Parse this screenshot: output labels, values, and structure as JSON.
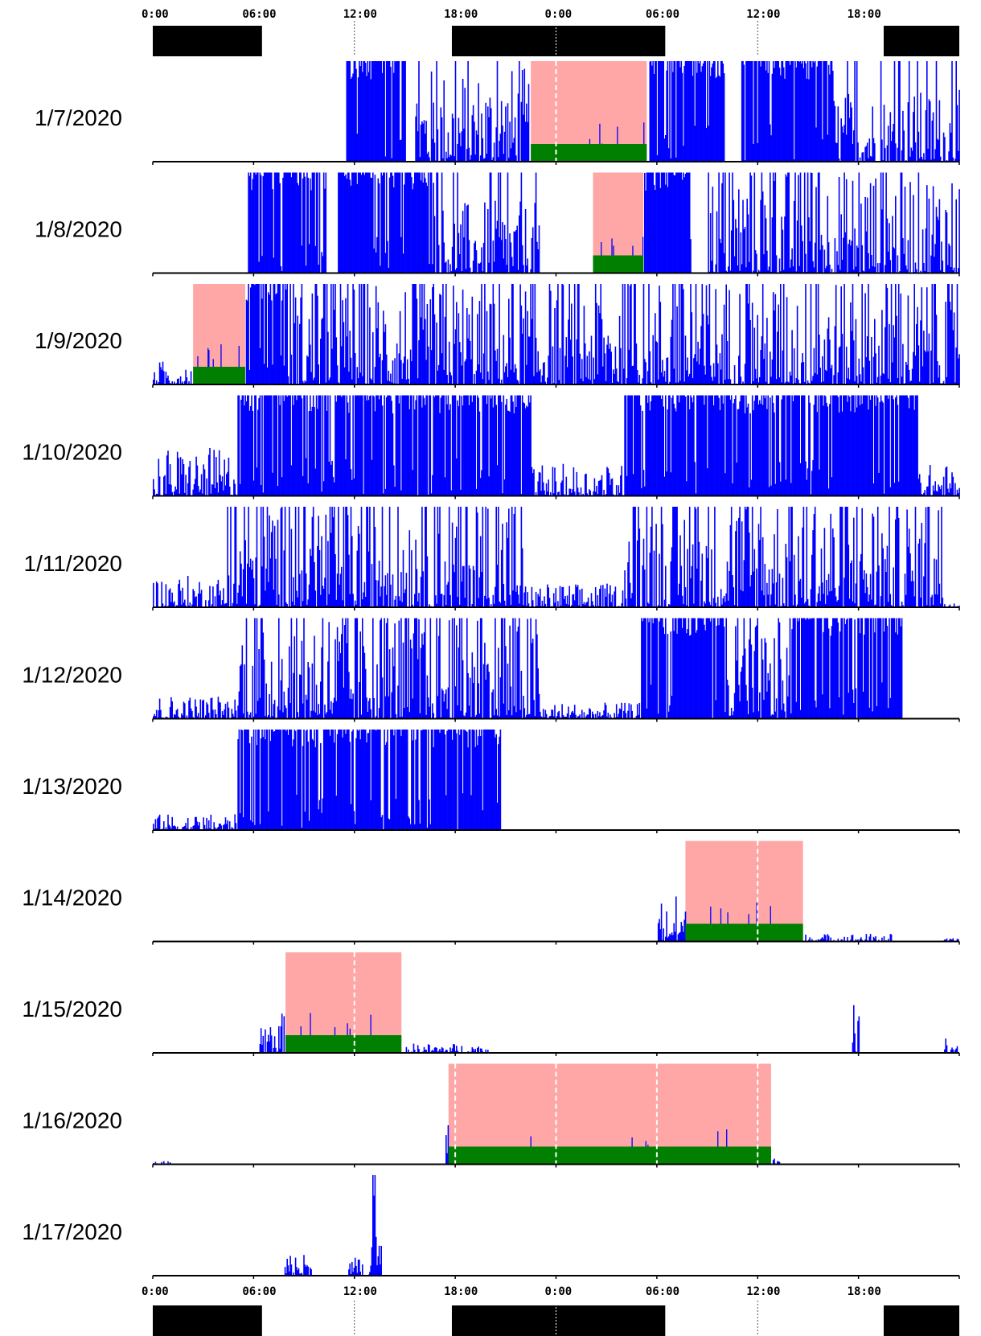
{
  "chart_data": {
    "type": "actogram",
    "hours_per_row": 48,
    "x_ticks": [
      "0:00",
      "06:00",
      "12:00",
      "18:00",
      "0:00",
      "06:00",
      "12:00",
      "18:00"
    ],
    "light_dark_bar": [
      {
        "phase": "dark",
        "start_h": 0,
        "end_h": 6.5
      },
      {
        "phase": "light",
        "start_h": 6.5,
        "end_h": 17.8
      },
      {
        "phase": "dark",
        "start_h": 17.8,
        "end_h": 30.5
      },
      {
        "phase": "light",
        "start_h": 30.5,
        "end_h": 43.5
      },
      {
        "phase": "dark",
        "start_h": 43.5,
        "end_h": 48
      }
    ],
    "rows": [
      {
        "date": "1/7/2020",
        "active_from": 11.5,
        "active_to": 48,
        "density": 0.85,
        "bouts": [
          [
            11.5,
            15.0,
            1.0
          ],
          [
            15.5,
            22.5,
            0.6
          ],
          [
            29.5,
            34.0,
            1.0
          ],
          [
            35.0,
            40.5,
            1.0
          ],
          [
            40.5,
            48,
            0.45
          ]
        ],
        "sleep": [
          [
            22.5,
            29.4
          ]
        ],
        "midnight_dash": [
          24
        ]
      },
      {
        "date": "1/8/2020",
        "active_from": 5.6,
        "active_to": 48,
        "density": 0.8,
        "bouts": [
          [
            5.6,
            10.3,
            1.0
          ],
          [
            11.0,
            16.7,
            1.0
          ],
          [
            16.7,
            23.0,
            0.45
          ],
          [
            29.2,
            32.0,
            1.0
          ],
          [
            33.0,
            48,
            0.7
          ]
        ],
        "sleep": [
          [
            26.2,
            29.2
          ]
        ],
        "midnight_dash": []
      },
      {
        "date": "1/9/2020",
        "active_from": 0,
        "active_to": 48,
        "density": 0.75,
        "bouts": [
          [
            0,
            2.3,
            0.15
          ],
          [
            5.5,
            8.0,
            1.0
          ],
          [
            8.0,
            30.0,
            0.7
          ],
          [
            30.0,
            48,
            0.7
          ]
        ],
        "sleep": [
          [
            2.4,
            5.5
          ]
        ],
        "midnight_dash": []
      },
      {
        "date": "1/10/2020",
        "active_from": 0,
        "active_to": 48,
        "density": 0.75,
        "bouts": [
          [
            0,
            5.0,
            0.3
          ],
          [
            5.0,
            22.5,
            0.85
          ],
          [
            22.5,
            28.0,
            0.2
          ],
          [
            28.0,
            45.5,
            0.85
          ],
          [
            45.5,
            48,
            0.2
          ]
        ],
        "sleep": [],
        "midnight_dash": []
      },
      {
        "date": "1/11/2020",
        "active_from": 0,
        "active_to": 48,
        "density": 0.75,
        "bouts": [
          [
            0,
            4.3,
            0.2
          ],
          [
            4.3,
            22.0,
            0.8
          ],
          [
            22.0,
            28.0,
            0.15
          ],
          [
            28.0,
            47.0,
            0.75
          ],
          [
            47.0,
            48,
            0.05
          ]
        ],
        "sleep": [],
        "midnight_dash": []
      },
      {
        "date": "1/12/2020",
        "active_from": 0,
        "active_to": 44.6,
        "density": 0.7,
        "bouts": [
          [
            0,
            5.0,
            0.15
          ],
          [
            5.0,
            23.0,
            0.75
          ],
          [
            23.0,
            29.0,
            0.1
          ],
          [
            29.0,
            34.0,
            1.0
          ],
          [
            34.0,
            38.0,
            0.6
          ],
          [
            38.0,
            44.6,
            0.85
          ]
        ],
        "sleep": [],
        "midnight_dash": []
      },
      {
        "date": "1/13/2020",
        "active_from": 0,
        "active_to": 20.7,
        "density": 0.7,
        "bouts": [
          [
            0,
            5.0,
            0.1
          ],
          [
            5.0,
            20.7,
            0.9
          ]
        ],
        "sleep": [],
        "midnight_dash": []
      },
      {
        "date": "1/14/2020",
        "active_from": 30.0,
        "active_to": 48,
        "density": 0.2,
        "bouts": [
          [
            30.0,
            31.7,
            0.3
          ],
          [
            38.8,
            40.5,
            0.05
          ],
          [
            40.5,
            44.0,
            0.05
          ],
          [
            47.0,
            48,
            0.02
          ]
        ],
        "sleep": [
          [
            31.7,
            38.7
          ]
        ],
        "midnight_dash": [
          36
        ]
      },
      {
        "date": "1/15/2020",
        "active_from": 6.3,
        "active_to": 48,
        "density": 0.2,
        "bouts": [
          [
            6.3,
            7.9,
            0.25
          ],
          [
            15.0,
            20.0,
            0.06
          ],
          [
            41.5,
            42.0,
            0.3
          ],
          [
            47.0,
            48,
            0.1
          ]
        ],
        "sleep": [
          [
            7.9,
            14.8
          ]
        ],
        "midnight_dash": [
          12
        ]
      },
      {
        "date": "1/16/2020",
        "active_from": 0,
        "active_to": 48,
        "density": 0.1,
        "bouts": [
          [
            0,
            1.0,
            0.02
          ],
          [
            17.3,
            17.6,
            0.3
          ],
          [
            36.8,
            37.3,
            0.05
          ]
        ],
        "sleep": [
          [
            17.6,
            36.8
          ]
        ],
        "midnight_dash": [
          18,
          24,
          30,
          36
        ]
      },
      {
        "date": "1/17/2020",
        "active_from": 7.8,
        "active_to": 14.5,
        "density": 0.3,
        "bouts": [
          [
            7.8,
            9.5,
            0.15
          ],
          [
            11.5,
            12.5,
            0.12
          ],
          [
            12.8,
            13.6,
            0.25
          ],
          [
            13.0,
            13.4,
            0.8
          ]
        ],
        "sleep": [],
        "midnight_dash": []
      }
    ]
  },
  "colors": {
    "activity": "#0000ff",
    "sleep_window": "#ffa7a7",
    "sleep_bar": "#007f00",
    "dark_phase": "#000000",
    "axis": "#000000"
  }
}
